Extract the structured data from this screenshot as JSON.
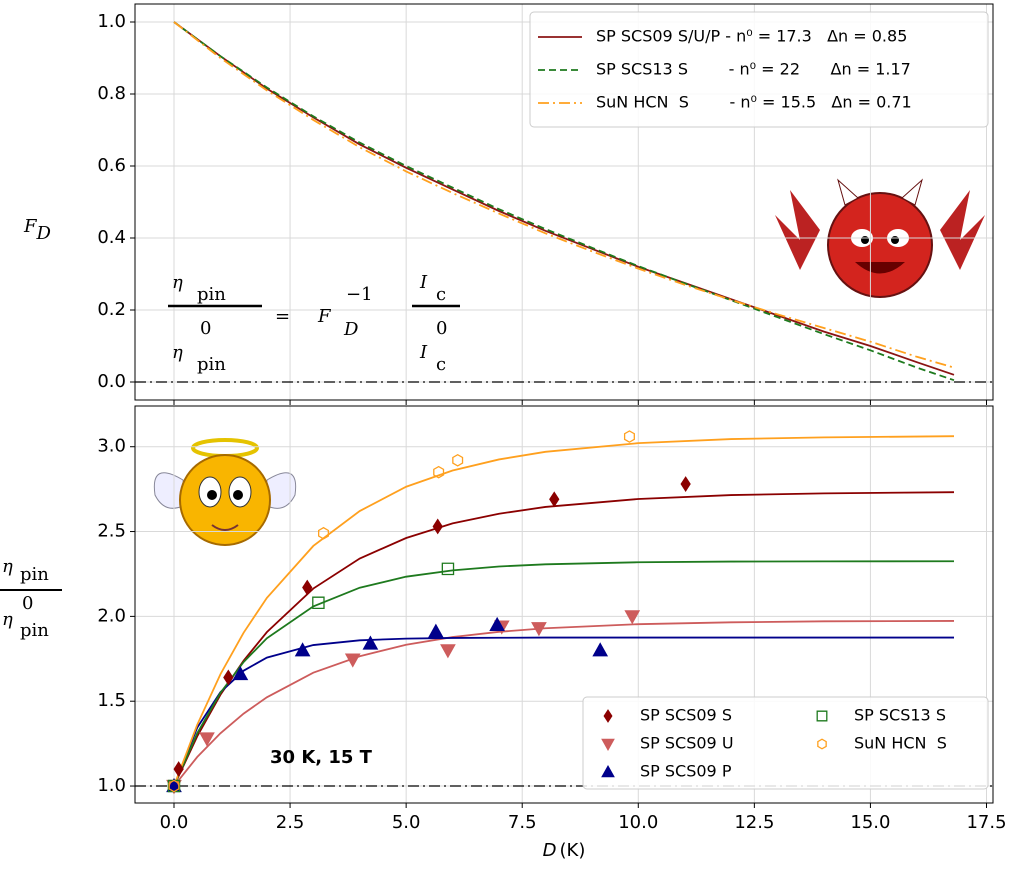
{
  "chart_data": [
    {
      "type": "line",
      "ylabel": {
        "main": "F",
        "sub": "D"
      },
      "formula": {
        "eta": "η",
        "pin": "pin",
        "zero": "0",
        "equals": "=",
        "F": "F",
        "D": "D",
        "inv": "−1",
        "I": "I",
        "c": "c"
      },
      "x": [
        0,
        1,
        2,
        3,
        4,
        5,
        6,
        7,
        8,
        9,
        10,
        11,
        12,
        13,
        14,
        15,
        16,
        16.8
      ],
      "series": [
        {
          "name": "SP SCS09 S/U/P - n⁰ = 17.3   Δn = 0.85",
          "color": "#8b1414",
          "linestyle": "solid",
          "values": [
            1.0,
            0.905,
            0.815,
            0.735,
            0.66,
            0.595,
            0.535,
            0.475,
            0.42,
            0.37,
            0.32,
            0.275,
            0.23,
            0.185,
            0.14,
            0.1,
            0.055,
            0.02
          ]
        },
        {
          "name": "SP SCS13 S        - n⁰ = 22      Δn = 1.17",
          "color": "#1e7a1e",
          "linestyle": "dashed",
          "values": [
            1.0,
            0.905,
            0.818,
            0.738,
            0.665,
            0.6,
            0.54,
            0.48,
            0.425,
            0.373,
            0.322,
            0.274,
            0.227,
            0.18,
            0.133,
            0.088,
            0.04,
            0.005
          ]
        },
        {
          "name": "SuN HCN  S        - n⁰ = 15.5   Δn = 0.71",
          "color": "#ffa01e",
          "linestyle": "dashdot",
          "values": [
            1.0,
            0.9,
            0.81,
            0.728,
            0.652,
            0.585,
            0.525,
            0.468,
            0.413,
            0.363,
            0.315,
            0.27,
            0.228,
            0.188,
            0.15,
            0.112,
            0.07,
            0.04
          ]
        }
      ],
      "xlim": [
        -0.84,
        17.64
      ],
      "xticks": [
        0,
        2.5,
        5,
        7.5,
        10,
        12.5,
        15,
        17.5
      ],
      "ylim": [
        -0.05,
        1.05
      ],
      "yticks": [
        {
          "value": 0,
          "label": "0.0"
        },
        0.2,
        0.4,
        0.6,
        0.8,
        {
          "value": 1,
          "label": "1.0"
        }
      ],
      "hline": 0,
      "grid": true,
      "legend": "upper right"
    },
    {
      "type": "scatter",
      "ylabel": {
        "main": "η",
        "sub": "pin",
        "sup": "0"
      },
      "xlabel": {
        "var": "D",
        "unit": "(K)"
      },
      "annotation": "30 K, 15 T",
      "series": [
        {
          "name": "SP SCS09 S",
          "color": "#8b0000",
          "marker": "diamond",
          "filled": true,
          "x": [
            0,
            0.1,
            1.17,
            2.87,
            5.68,
            8.19,
            11.02
          ],
          "values": [
            1.0,
            1.1,
            1.64,
            2.17,
            2.53,
            2.69,
            2.78
          ]
        },
        {
          "name": "SP SCS09 U",
          "color": "#cd5c5c",
          "marker": "triangle-down",
          "filled": true,
          "x": [
            0,
            0.71,
            3.85,
            5.9,
            7.06,
            7.86,
            9.87
          ],
          "values": [
            1.0,
            1.28,
            1.745,
            1.8,
            1.94,
            1.93,
            2.0
          ]
        },
        {
          "name": "SP SCS09 P",
          "color": "#00008b",
          "marker": "triangle-up",
          "filled": true,
          "x": [
            0,
            1.43,
            2.77,
            4.23,
            5.64,
            6.96,
            9.18
          ],
          "values": [
            1.0,
            1.66,
            1.8,
            1.84,
            1.91,
            1.95,
            1.8
          ]
        },
        {
          "name": "SP SCS13 S",
          "color": "#1e7a1e",
          "marker": "square",
          "filled": false,
          "x": [
            0,
            3.11,
            5.9
          ],
          "values": [
            1.0,
            2.08,
            2.28
          ]
        },
        {
          "name": "SuN HCN  S",
          "color": "#ffa01e",
          "marker": "hexagon",
          "filled": false,
          "x": [
            0,
            3.22,
            5.7,
            6.11,
            9.81
          ],
          "values": [
            1.0,
            2.49,
            2.85,
            2.92,
            3.06
          ]
        }
      ],
      "fits": {
        "x": [
          0,
          0.5,
          1,
          1.5,
          2,
          3,
          4,
          5,
          6,
          7,
          8,
          10,
          12,
          14,
          16.8
        ],
        "lines": [
          {
            "color": "#8b0000",
            "values": [
              1.0,
              1.293,
              1.538,
              1.739,
              1.907,
              2.164,
              2.341,
              2.462,
              2.548,
              2.605,
              2.645,
              2.692,
              2.715,
              2.725,
              2.732
            ]
          },
          {
            "color": "#cd5c5c",
            "values": [
              1.0,
              1.171,
              1.311,
              1.427,
              1.523,
              1.668,
              1.765,
              1.833,
              1.878,
              1.909,
              1.93,
              1.954,
              1.965,
              1.971,
              1.973
            ]
          },
          {
            "color": "#00008b",
            "values": [
              1.0,
              1.344,
              1.553,
              1.68,
              1.757,
              1.831,
              1.859,
              1.869,
              1.873,
              1.874,
              1.875,
              1.875,
              1.875,
              1.875,
              1.875
            ]
          },
          {
            "color": "#1e7a1e",
            "values": [
              1.0,
              1.311,
              1.549,
              1.731,
              1.871,
              2.059,
              2.169,
              2.234,
              2.271,
              2.294,
              2.307,
              2.319,
              2.323,
              2.324,
              2.325
            ]
          },
          {
            "color": "#ffa01e",
            "values": [
              1.0,
              1.361,
              1.659,
              1.904,
              2.109,
              2.415,
              2.621,
              2.764,
              2.86,
              2.925,
              2.97,
              3.021,
              3.045,
              3.055,
              3.062
            ]
          }
        ]
      },
      "xlim": [
        -0.84,
        17.64
      ],
      "xticks": [
        {
          "value": 0,
          "label": "0.0"
        },
        2.5,
        {
          "value": 5,
          "label": "5.0"
        },
        7.5,
        {
          "value": 10,
          "label": "10.0"
        },
        12.5,
        {
          "value": 15,
          "label": "15.0"
        },
        17.5
      ],
      "ylim": [
        0.9,
        3.24
      ],
      "yticks": [
        {
          "value": 1,
          "label": "1.0"
        },
        1.5,
        {
          "value": 2,
          "label": "2.0"
        },
        2.5,
        {
          "value": 3,
          "label": "3.0"
        }
      ],
      "hline": 1,
      "grid": true,
      "legend": "lower right"
    }
  ]
}
